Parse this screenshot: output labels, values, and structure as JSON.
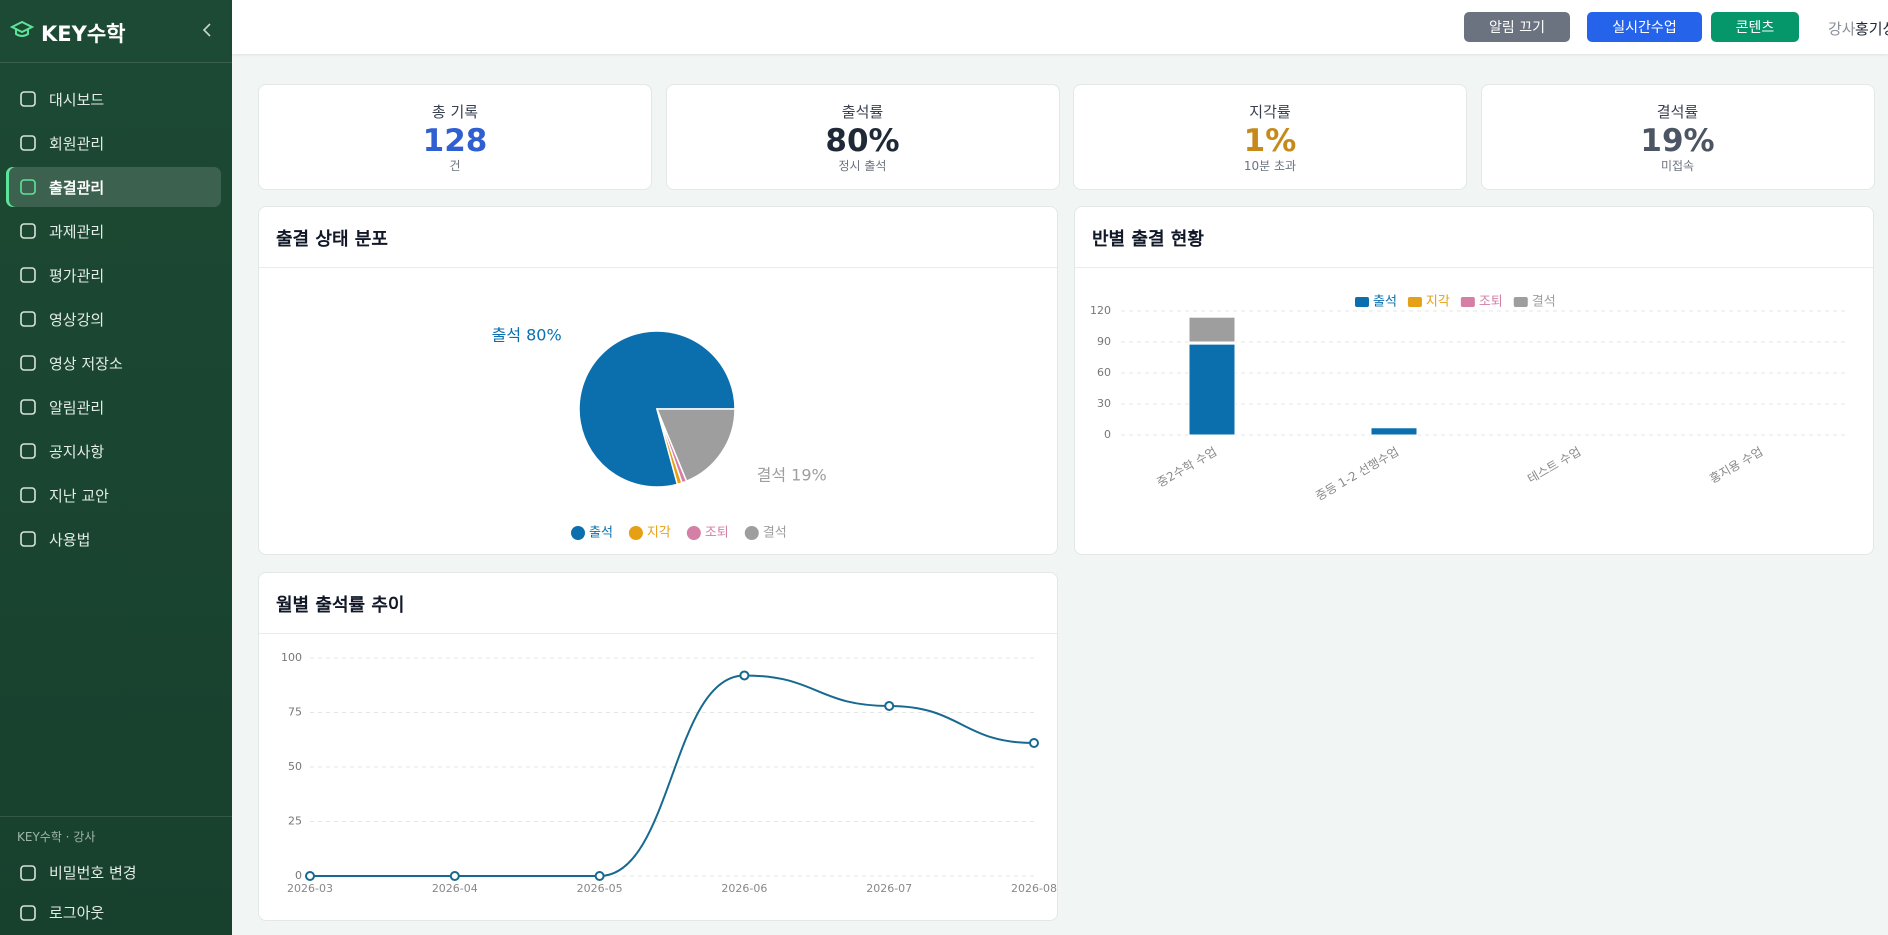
{
  "sidebar": {
    "brand": "KEY수학",
    "menu": [
      "대시보드",
      "회원관리",
      "출결관리",
      "과제관리",
      "평가관리",
      "영상강의",
      "영상 저장소",
      "알림관리",
      "공지사항",
      "지난 교안",
      "사용법"
    ],
    "footer_caption": "KEY수학 · 강사",
    "footer_links": [
      "비밀번호 변경",
      "로그아웃"
    ]
  },
  "header": {
    "buttons": [
      {
        "label": "알림 끄기",
        "color": "#6b7280"
      },
      {
        "label": "실시간수업",
        "color": "#2563eb"
      },
      {
        "label": "콘텐츠",
        "color": "#059669"
      }
    ],
    "role": "강사",
    "user": "홍기상"
  },
  "stats": [
    {
      "label": "총 기록",
      "value": "128",
      "note": "건",
      "color": "#2f5fd0"
    },
    {
      "label": "출석률",
      "value": "80%",
      "note": "정시 출석",
      "color": "#1f2937"
    },
    {
      "label": "지각률",
      "value": "1%",
      "note": "10분 초과",
      "color": "#c58a1a"
    },
    {
      "label": "결석률",
      "value": "19%",
      "note": "미접속",
      "color": "#4b5563"
    }
  ],
  "chart_data": [
    {
      "type": "pie",
      "title": "출결 상태 분포",
      "categories": [
        "출석",
        "지각",
        "조퇴",
        "결석"
      ],
      "values": [
        80,
        1,
        1,
        19
      ],
      "value_labels": [
        "출석 80%",
        null,
        null,
        "결석 19%"
      ],
      "colors": [
        "#0b6fae",
        "#e5a015",
        "#d47fa6",
        "#9e9e9e"
      ]
    },
    {
      "type": "bar",
      "stacked": true,
      "title": "반별 출결 현황",
      "categories": [
        "중2수학 수업",
        "중등 1-2 선행수업",
        "테스트 수업",
        "홍지용 수업"
      ],
      "series": [
        {
          "name": "출석",
          "color": "#0b6fae",
          "values": [
            88,
            7,
            0,
            0
          ]
        },
        {
          "name": "지각",
          "color": "#e5a015",
          "values": [
            1,
            0,
            0,
            0
          ]
        },
        {
          "name": "조퇴",
          "color": "#d47fa6",
          "values": [
            1,
            0,
            0,
            0
          ]
        },
        {
          "name": "결석",
          "color": "#9e9e9e",
          "values": [
            24,
            0,
            0,
            0
          ]
        }
      ],
      "ylim": [
        0,
        120
      ],
      "yticks": [
        0,
        30,
        60,
        90,
        120
      ],
      "grid": true
    },
    {
      "type": "line",
      "title": "월별 출석률 추이",
      "x": [
        "2026-03",
        "2026-04",
        "2026-05",
        "2026-06",
        "2026-07",
        "2026-08"
      ],
      "values": [
        0,
        0,
        0,
        92,
        78,
        61
      ],
      "color": "#17698f",
      "smooth": true,
      "ylim": [
        0,
        100
      ],
      "yticks": [
        0,
        25,
        50,
        75,
        100
      ],
      "grid": true
    }
  ]
}
